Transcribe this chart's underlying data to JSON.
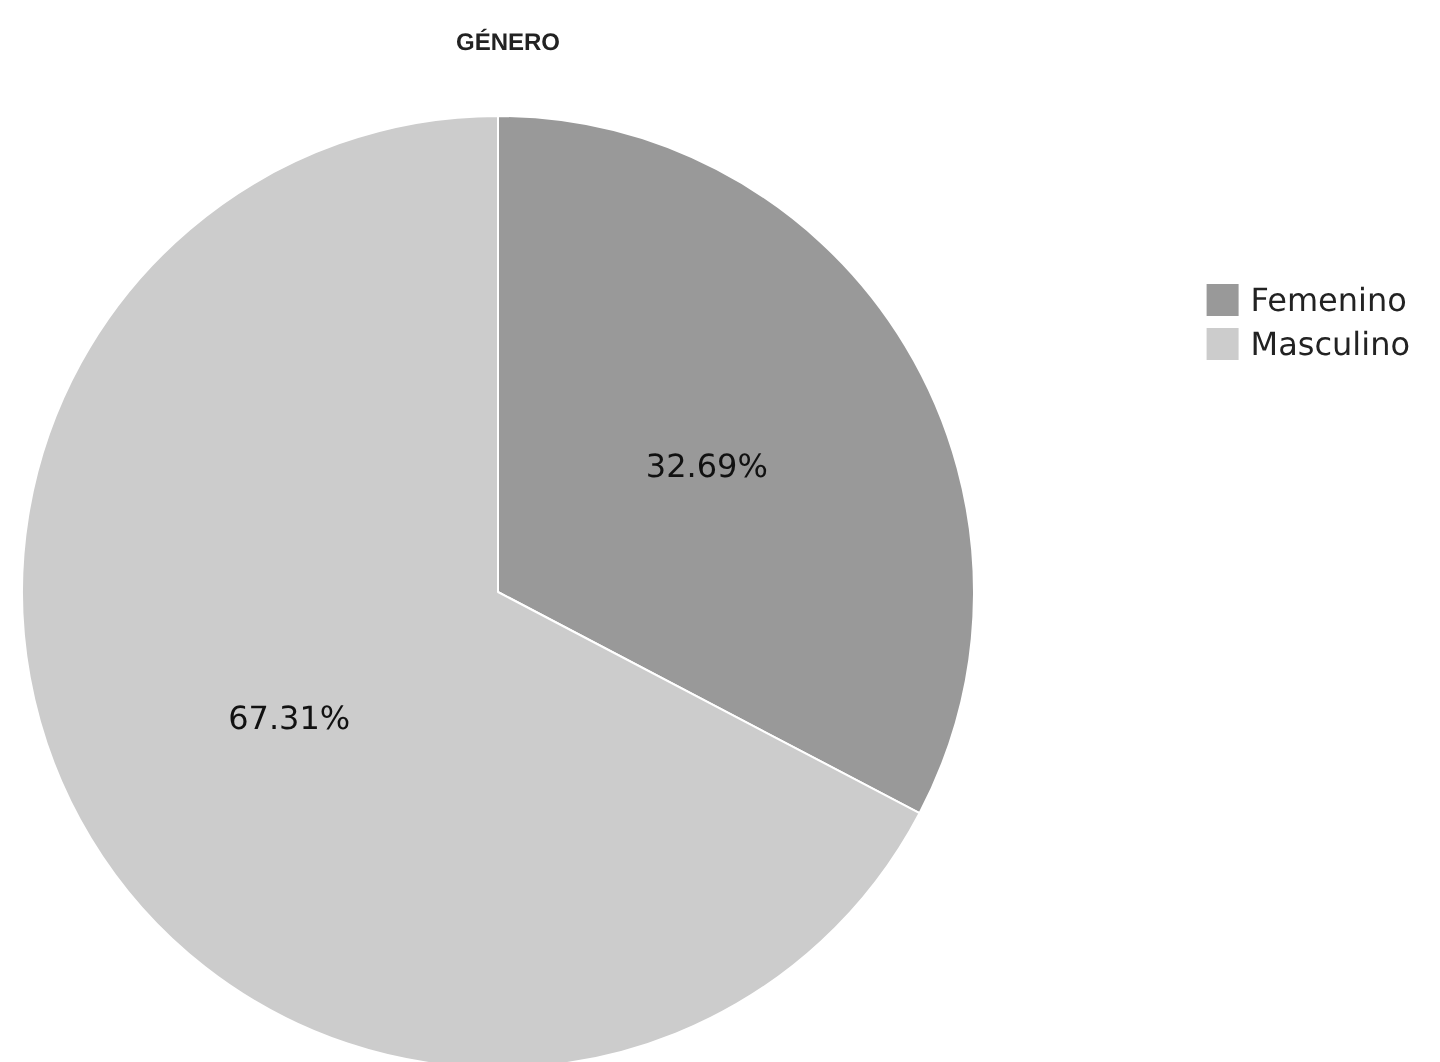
{
  "chart_data": {
    "type": "pie",
    "title": "GÉNERO",
    "categories": [
      "Femenino",
      "Masculino"
    ],
    "values": [
      32.69,
      67.31
    ],
    "colors": [
      "#999999",
      "#cccccc"
    ],
    "value_labels": [
      "32.69%",
      "67.31%"
    ],
    "legend": "top right"
  }
}
